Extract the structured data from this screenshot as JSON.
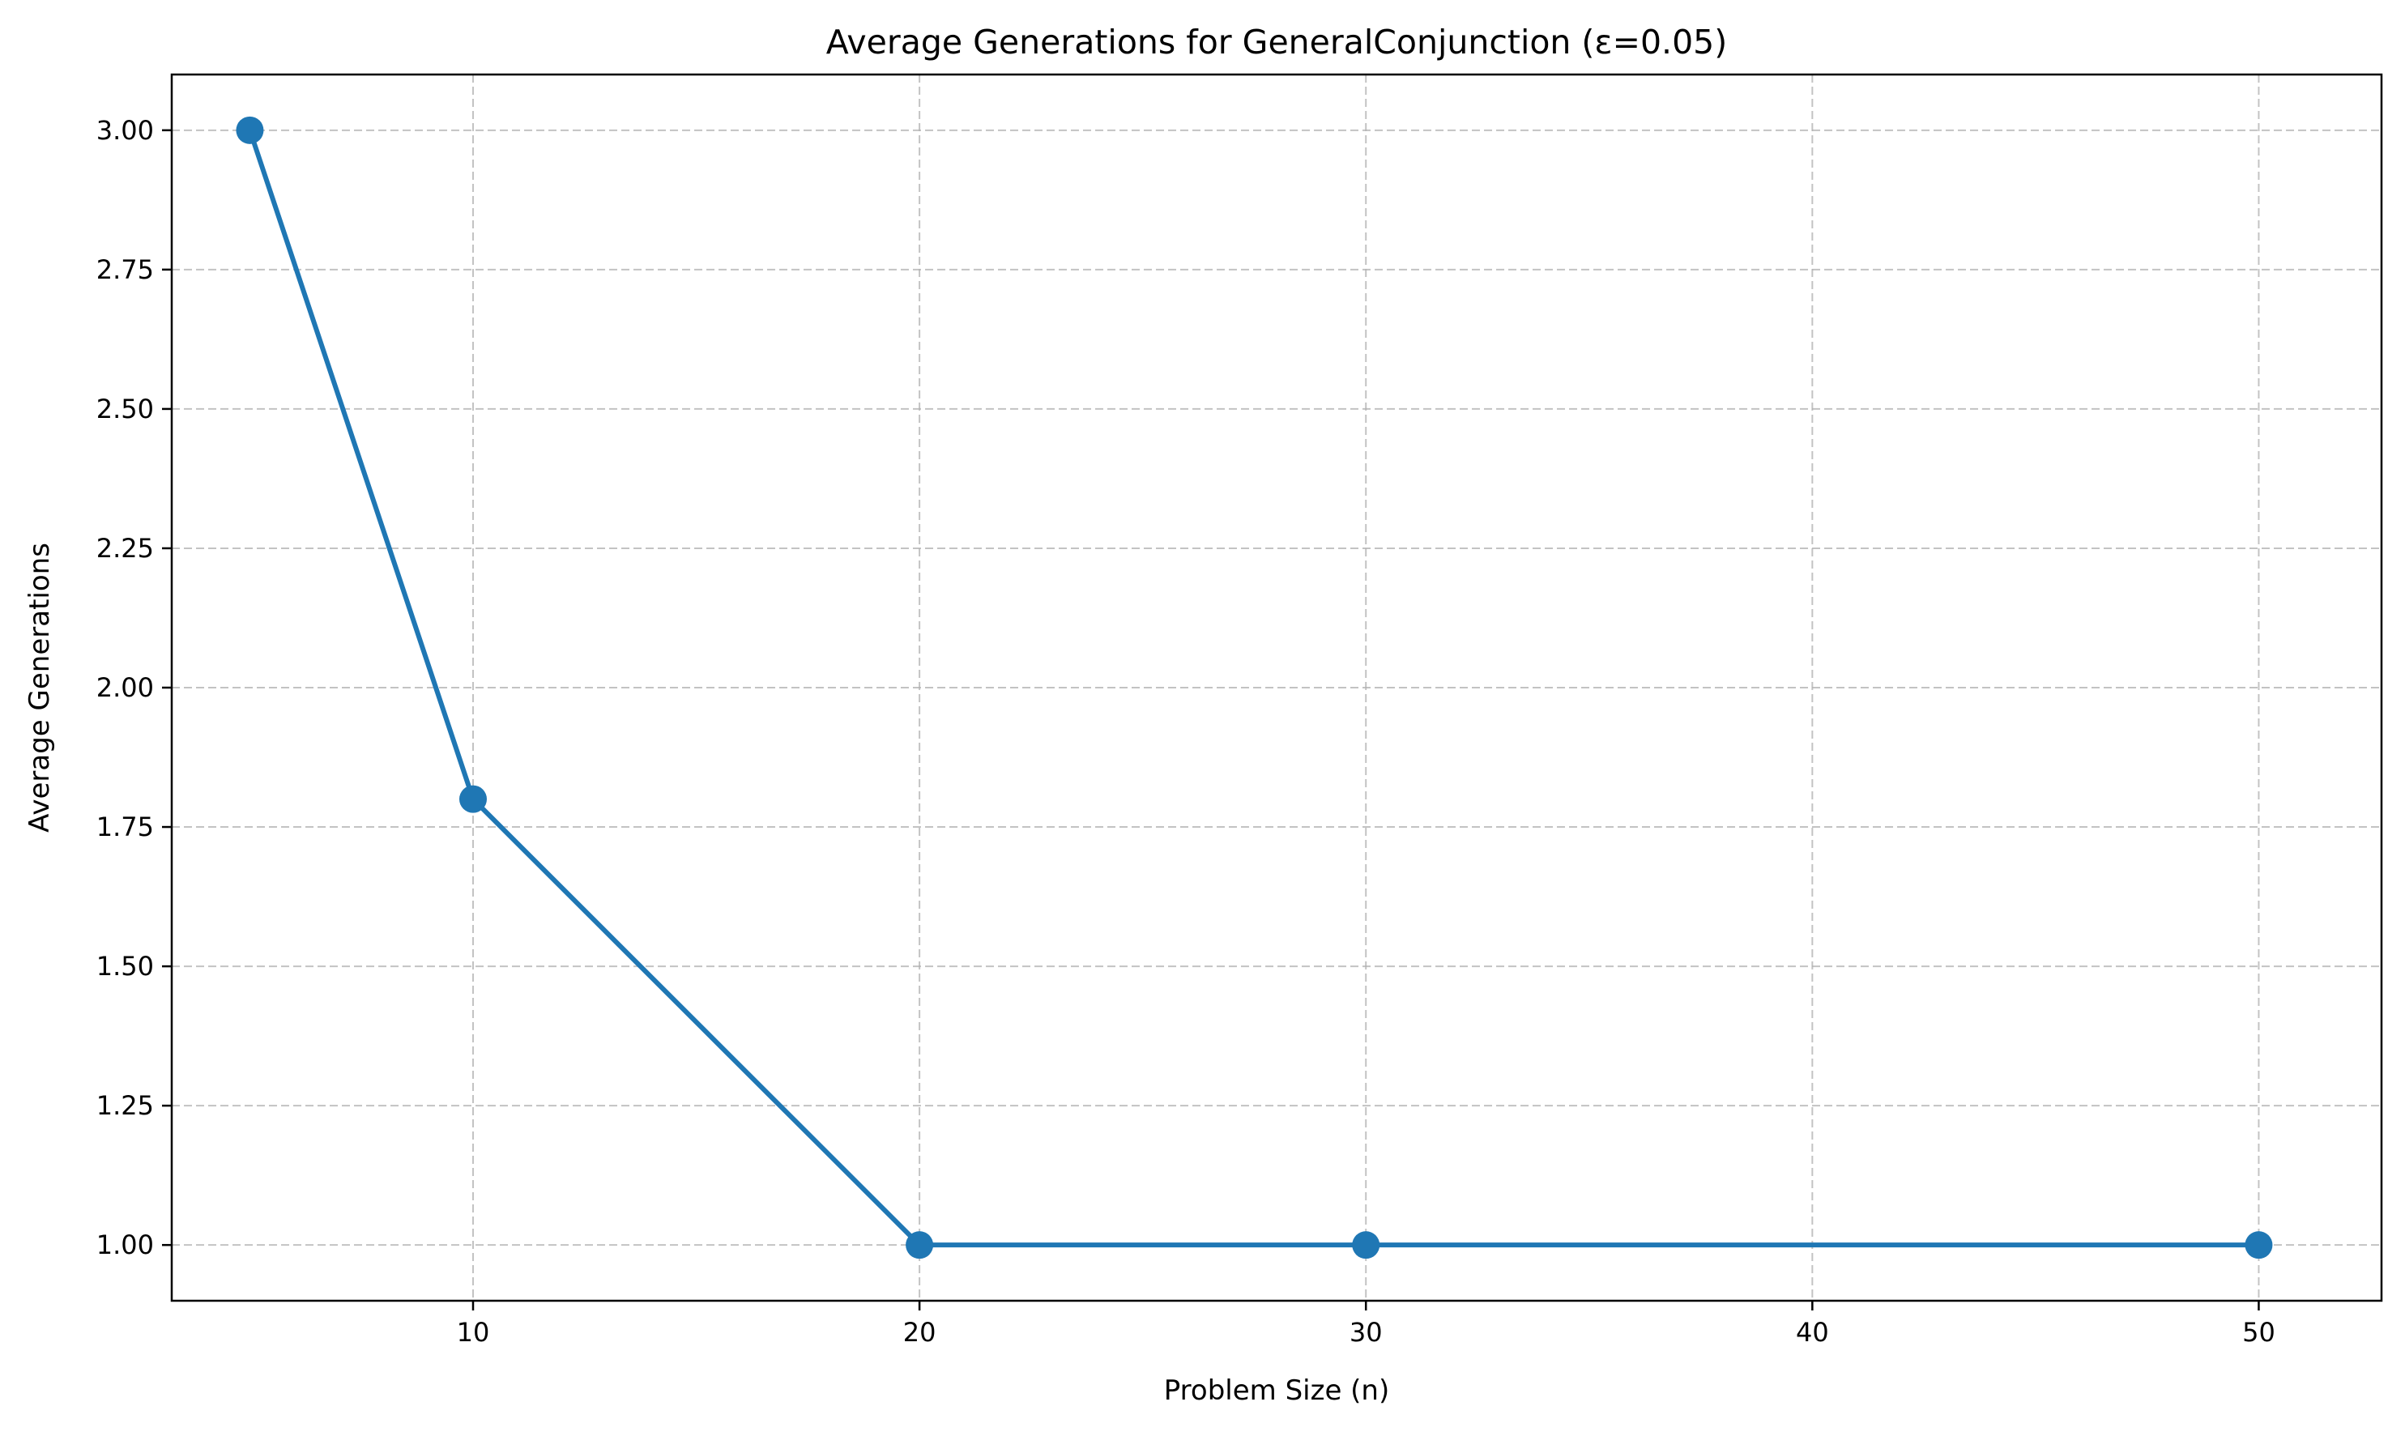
{
  "chart_data": {
    "type": "line",
    "title": "Average Generations for GeneralConjunction (ε=0.05)",
    "xlabel": "Problem Size (n)",
    "ylabel": "Average Generations",
    "x": [
      5,
      10,
      20,
      30,
      50
    ],
    "series": [
      {
        "values": [
          3.0,
          1.8,
          1.0,
          1.0,
          1.0
        ]
      }
    ],
    "xlim": [
      3.25,
      52.75
    ],
    "ylim": [
      0.9,
      3.1
    ],
    "xticks": [
      10,
      20,
      30,
      40,
      50
    ],
    "xtick_labels": [
      "10",
      "20",
      "30",
      "40",
      "50"
    ],
    "yticks": [
      1.0,
      1.25,
      1.5,
      1.75,
      2.0,
      2.25,
      2.5,
      2.75,
      3.0
    ],
    "ytick_labels": [
      "1.00",
      "1.25",
      "1.50",
      "1.75",
      "2.00",
      "2.25",
      "2.50",
      "2.75",
      "3.00"
    ],
    "grid": true,
    "grid_style": "dashed",
    "colors": {
      "line": "#1f77b4",
      "grid": "#b0b0b0",
      "axes": "#000000"
    }
  }
}
